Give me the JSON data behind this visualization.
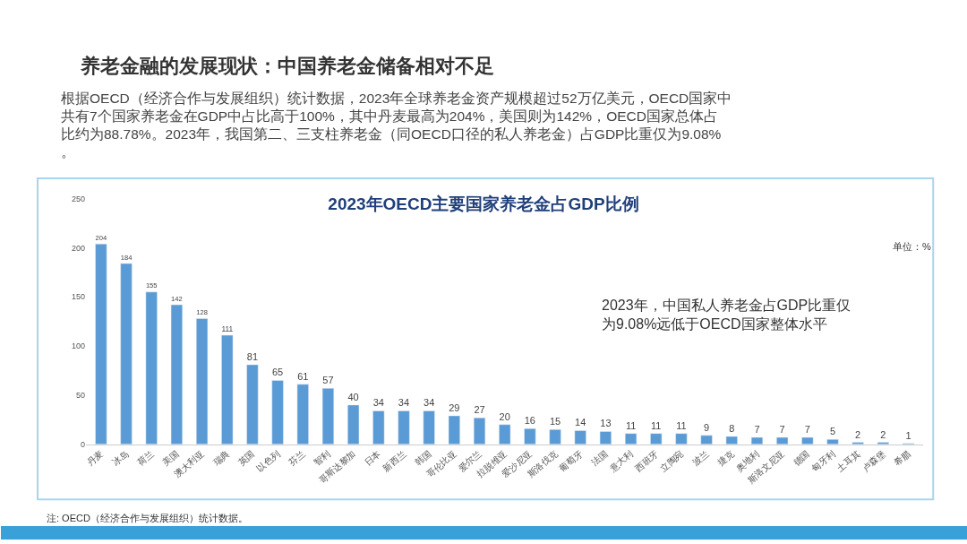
{
  "chart_data": {
    "type": "bar",
    "title": "2023年OECD主要国家养老金占GDP比例",
    "categories": [
      "丹麦",
      "冰岛",
      "荷兰",
      "美国",
      "澳大利亚",
      "瑞典",
      "英国",
      "以色列",
      "芬兰",
      "智利",
      "哥斯达黎加",
      "日本",
      "新西兰",
      "韩国",
      "哥伦比亚",
      "爱尔兰",
      "拉脱维亚",
      "爱沙尼亚",
      "斯洛伐克",
      "葡萄牙",
      "法国",
      "意大利",
      "西班牙",
      "立陶宛",
      "波兰",
      "捷克",
      "奥地利",
      "斯洛文尼亚",
      "德国",
      "匈牙利",
      "土耳其",
      "卢森堡",
      "希腊"
    ],
    "values": [
      204,
      184,
      155,
      142,
      128,
      111,
      81,
      65,
      61,
      57,
      40,
      34,
      34,
      34,
      29,
      27,
      20,
      16,
      15,
      14,
      13,
      11,
      11,
      11,
      9,
      8,
      7,
      7,
      7,
      5,
      2,
      2,
      1
    ],
    "color": "#5b9bd5",
    "ylim": [
      0,
      250
    ],
    "yticks": [
      0,
      50,
      100,
      150,
      200,
      250
    ],
    "grid": false,
    "data_labels": true,
    "annotations": [
      "养老金融的发展现状：中国养老金储备相对不足",
      "根据OECD（经济合作与发展组织）统计数据，2023年全球养老金资产规模超过52万亿美元，OECD国家中共有7个国家养老金在GDP中占比高于100%，其中丹麦最高为204%，美国则为142%，OECD国家总体占比约为88.78%。2023年，我国第二、三支柱养老金（同OECD口径的私人养老金）占GDP比重仅为9.08%。",
      "单位：%",
      "2023年，中国私人养老金占GDP比重仅为9.08%远低于OECD国家整体水平",
      "注: OECD（经济合作与发展组织）统计数据。"
    ]
  }
}
